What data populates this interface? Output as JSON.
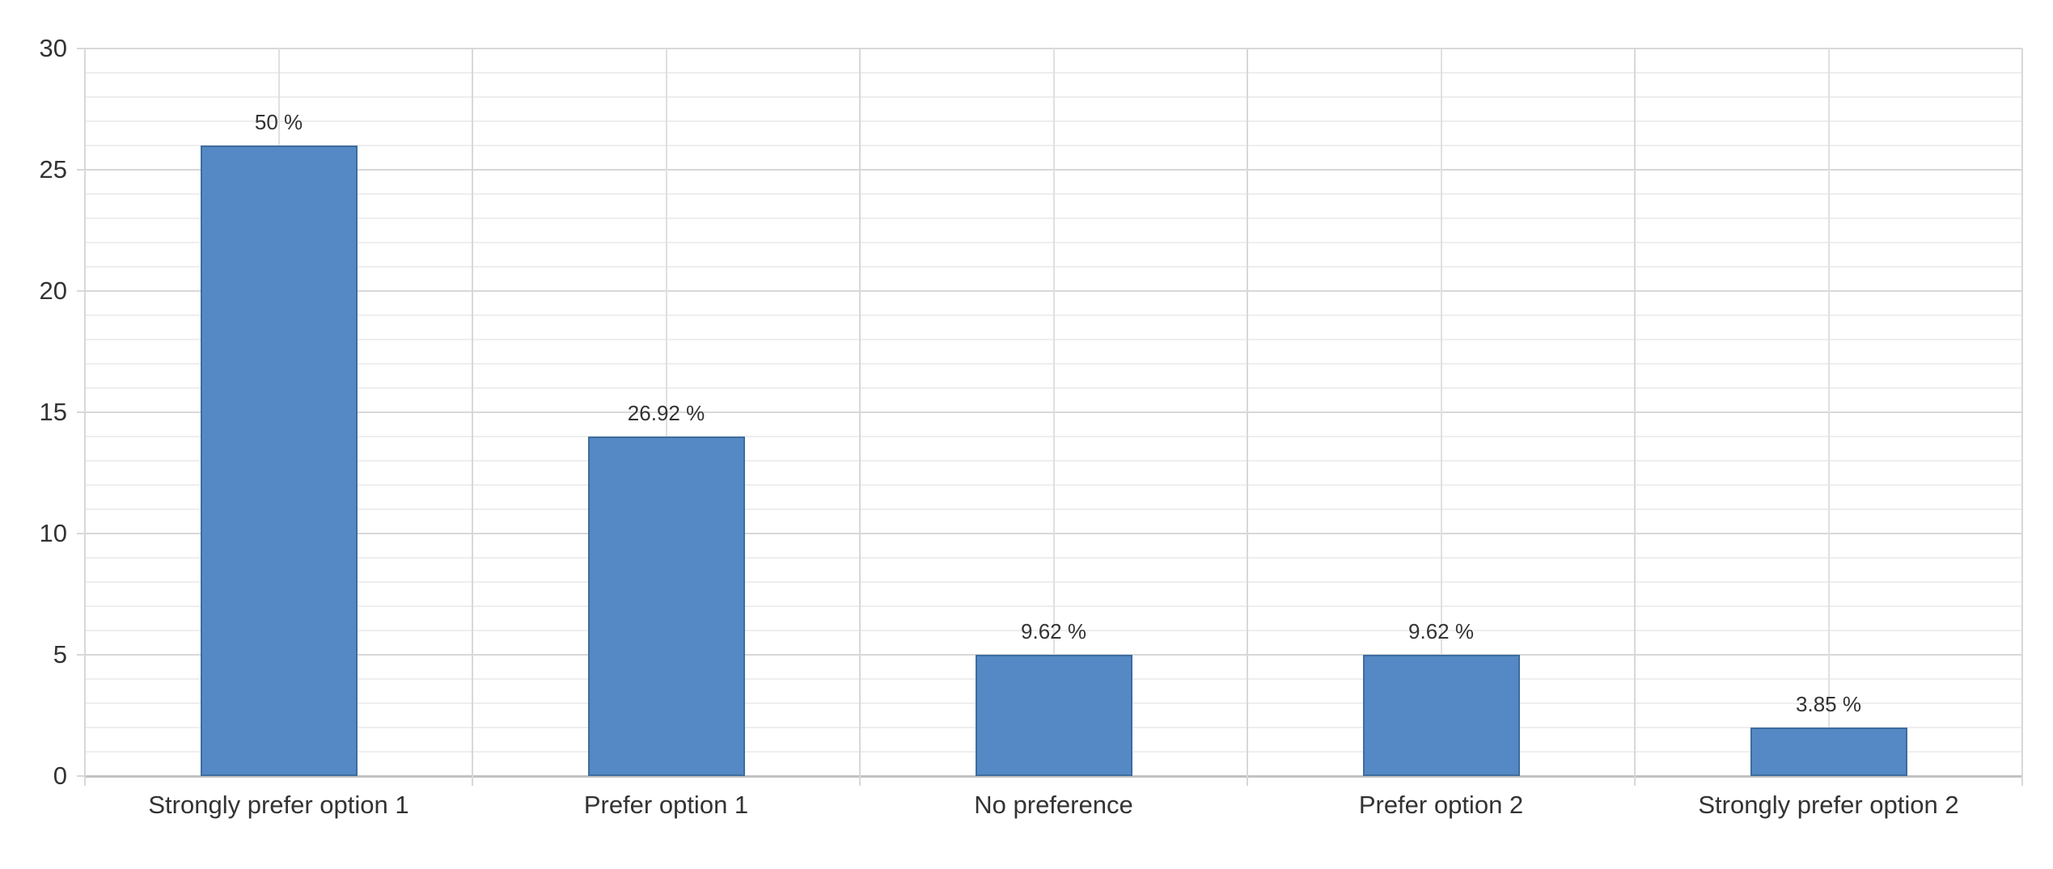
{
  "chart_data": {
    "type": "bar",
    "title": "",
    "xlabel": "",
    "ylabel": "",
    "categories": [
      "Strongly prefer option 1",
      "Prefer option 1",
      "No preference",
      "Prefer option 2",
      "Strongly prefer option 2"
    ],
    "values": [
      26,
      14,
      5,
      5,
      2
    ],
    "percentages": [
      50,
      26.92,
      9.62,
      9.62,
      3.85
    ],
    "value_labels": [
      "50 %",
      "26.92 %",
      "9.62 %",
      "9.62 %",
      "3.85 %"
    ],
    "ylim": [
      0,
      30
    ],
    "y_major_step": 5,
    "y_minor_step": 1,
    "y_tick_values": [
      0,
      5,
      10,
      15,
      20,
      25,
      30
    ],
    "y_tick_labels": [
      "0",
      "5",
      "10",
      "15",
      "20",
      "25",
      "30"
    ],
    "grid": "on",
    "legend": "none",
    "colors": {
      "bar_fill": "#5589c5",
      "bar_border": "#3d6c9e",
      "grid_major": "#d8d8d8",
      "grid_minor": "#eeeeee",
      "grid_center": "#e0e0e0",
      "baseline": "#c2c2c2",
      "text": "#333333",
      "background": "#ffffff"
    }
  }
}
